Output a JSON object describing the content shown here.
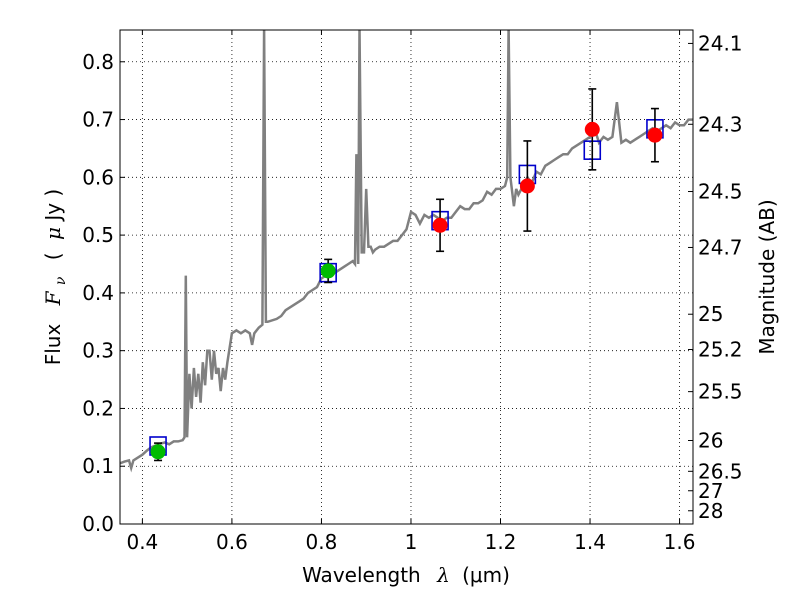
{
  "chart_data": {
    "type": "line",
    "x_axis": {
      "range": [
        0.35,
        1.63
      ],
      "ticks": [
        0.4,
        0.6,
        0.8,
        1.0,
        1.2,
        1.4,
        1.6
      ],
      "tick_labels": [
        "0.4",
        "0.6",
        "0.8",
        "1",
        "1.2",
        "1.4",
        "1.6"
      ],
      "label_main": "Wavelength",
      "label_symbol": "λ",
      "label_unit": "(μm)"
    },
    "y_axis": {
      "range": [
        0.0,
        0.855
      ],
      "ticks": [
        0.0,
        0.1,
        0.2,
        0.3,
        0.4,
        0.5,
        0.6,
        0.7,
        0.8
      ],
      "tick_labels": [
        "0.0",
        "0.1",
        "0.2",
        "0.3",
        "0.4",
        "0.5",
        "0.6",
        "0.7",
        "0.8"
      ],
      "label_main": "Flux",
      "label_symbol": "F",
      "label_subscript": "ν",
      "label_unit_open": "(",
      "label_unit_mu": "μ",
      "label_unit_rest": "Jy )"
    },
    "right_axis": {
      "label": "Magnitude (AB)",
      "ticks": [
        24.1,
        24.3,
        24.5,
        24.7,
        25,
        25.2,
        25.5,
        26,
        26.5,
        27,
        28
      ],
      "tick_labels": [
        "24.1",
        "24.3",
        "24.5",
        "24.7",
        "25",
        "25.2",
        "25.5",
        "26",
        "26.5",
        "27",
        "28"
      ]
    },
    "grid": true,
    "spectrum": {
      "color": "#808080",
      "points": [
        [
          0.35,
          0.105
        ],
        [
          0.36,
          0.108
        ],
        [
          0.37,
          0.11
        ],
        [
          0.375,
          0.097
        ],
        [
          0.38,
          0.11
        ],
        [
          0.39,
          0.115
        ],
        [
          0.4,
          0.12
        ],
        [
          0.41,
          0.127
        ],
        [
          0.42,
          0.133
        ],
        [
          0.43,
          0.136
        ],
        [
          0.44,
          0.139
        ],
        [
          0.45,
          0.141
        ],
        [
          0.46,
          0.138
        ],
        [
          0.47,
          0.143
        ],
        [
          0.48,
          0.143
        ],
        [
          0.49,
          0.145
        ],
        [
          0.494,
          0.15
        ],
        [
          0.497,
          0.43
        ],
        [
          0.5,
          0.15
        ],
        [
          0.505,
          0.26
        ],
        [
          0.51,
          0.2
        ],
        [
          0.515,
          0.27
        ],
        [
          0.52,
          0.22
        ],
        [
          0.525,
          0.26
        ],
        [
          0.53,
          0.21
        ],
        [
          0.535,
          0.28
        ],
        [
          0.54,
          0.24
        ],
        [
          0.545,
          0.3
        ],
        [
          0.55,
          0.3
        ],
        [
          0.555,
          0.25
        ],
        [
          0.56,
          0.3
        ],
        [
          0.565,
          0.26
        ],
        [
          0.57,
          0.27
        ],
        [
          0.575,
          0.23
        ],
        [
          0.58,
          0.27
        ],
        [
          0.585,
          0.25
        ],
        [
          0.59,
          0.28
        ],
        [
          0.6,
          0.33
        ],
        [
          0.61,
          0.335
        ],
        [
          0.62,
          0.33
        ],
        [
          0.63,
          0.335
        ],
        [
          0.64,
          0.33
        ],
        [
          0.645,
          0.31
        ],
        [
          0.65,
          0.33
        ],
        [
          0.66,
          0.34
        ],
        [
          0.668,
          0.345
        ],
        [
          0.672,
          0.86
        ],
        [
          0.676,
          0.35
        ],
        [
          0.68,
          0.35
        ],
        [
          0.7,
          0.355
        ],
        [
          0.71,
          0.36
        ],
        [
          0.72,
          0.37
        ],
        [
          0.73,
          0.375
        ],
        [
          0.74,
          0.38
        ],
        [
          0.75,
          0.385
        ],
        [
          0.76,
          0.39
        ],
        [
          0.77,
          0.4
        ],
        [
          0.78,
          0.405
        ],
        [
          0.79,
          0.41
        ],
        [
          0.8,
          0.425
        ],
        [
          0.81,
          0.43
        ],
        [
          0.82,
          0.43
        ],
        [
          0.83,
          0.435
        ],
        [
          0.84,
          0.44
        ],
        [
          0.85,
          0.445
        ],
        [
          0.86,
          0.45
        ],
        [
          0.87,
          0.455
        ],
        [
          0.875,
          0.45
        ],
        [
          0.878,
          0.64
        ],
        [
          0.882,
          0.45
        ],
        [
          0.885,
          0.86
        ],
        [
          0.89,
          0.47
        ],
        [
          0.895,
          0.47
        ],
        [
          0.9,
          0.58
        ],
        [
          0.905,
          0.48
        ],
        [
          0.91,
          0.48
        ],
        [
          0.915,
          0.47
        ],
        [
          0.92,
          0.475
        ],
        [
          0.93,
          0.48
        ],
        [
          0.94,
          0.48
        ],
        [
          0.95,
          0.485
        ],
        [
          0.96,
          0.49
        ],
        [
          0.97,
          0.49
        ],
        [
          0.98,
          0.5
        ],
        [
          0.99,
          0.51
        ],
        [
          1.0,
          0.54
        ],
        [
          1.01,
          0.535
        ],
        [
          1.02,
          0.52
        ],
        [
          1.03,
          0.535
        ],
        [
          1.04,
          0.53
        ],
        [
          1.05,
          0.535
        ],
        [
          1.06,
          0.53
        ],
        [
          1.07,
          0.525
        ],
        [
          1.08,
          0.53
        ],
        [
          1.09,
          0.53
        ],
        [
          1.1,
          0.54
        ],
        [
          1.11,
          0.55
        ],
        [
          1.12,
          0.545
        ],
        [
          1.13,
          0.545
        ],
        [
          1.14,
          0.555
        ],
        [
          1.15,
          0.555
        ],
        [
          1.16,
          0.56
        ],
        [
          1.17,
          0.575
        ],
        [
          1.18,
          0.57
        ],
        [
          1.19,
          0.58
        ],
        [
          1.2,
          0.58
        ],
        [
          1.21,
          0.585
        ],
        [
          1.215,
          0.6
        ],
        [
          1.218,
          0.86
        ],
        [
          1.222,
          0.6
        ],
        [
          1.23,
          0.55
        ],
        [
          1.235,
          0.58
        ],
        [
          1.24,
          0.57
        ],
        [
          1.25,
          0.585
        ],
        [
          1.26,
          0.6
        ],
        [
          1.27,
          0.59
        ],
        [
          1.28,
          0.61
        ],
        [
          1.29,
          0.605
        ],
        [
          1.3,
          0.62
        ],
        [
          1.31,
          0.625
        ],
        [
          1.32,
          0.63
        ],
        [
          1.33,
          0.635
        ],
        [
          1.34,
          0.64
        ],
        [
          1.35,
          0.64
        ],
        [
          1.36,
          0.65
        ],
        [
          1.37,
          0.655
        ],
        [
          1.38,
          0.66
        ],
        [
          1.39,
          0.665
        ],
        [
          1.4,
          0.67
        ],
        [
          1.41,
          0.685
        ],
        [
          1.42,
          0.66
        ],
        [
          1.43,
          0.67
        ],
        [
          1.44,
          0.665
        ],
        [
          1.45,
          0.67
        ],
        [
          1.46,
          0.73
        ],
        [
          1.47,
          0.66
        ],
        [
          1.48,
          0.665
        ],
        [
          1.49,
          0.66
        ],
        [
          1.5,
          0.665
        ],
        [
          1.51,
          0.67
        ],
        [
          1.52,
          0.675
        ],
        [
          1.53,
          0.68
        ],
        [
          1.54,
          0.685
        ],
        [
          1.55,
          0.68
        ],
        [
          1.56,
          0.685
        ],
        [
          1.57,
          0.69
        ],
        [
          1.58,
          0.685
        ],
        [
          1.59,
          0.695
        ],
        [
          1.6,
          0.69
        ],
        [
          1.61,
          0.69
        ],
        [
          1.62,
          0.7
        ],
        [
          1.63,
          0.7
        ]
      ]
    },
    "model_boxes": {
      "color": "#0000cc",
      "points": [
        [
          0.435,
          0.135
        ],
        [
          0.815,
          0.435
        ],
        [
          1.065,
          0.525
        ],
        [
          1.26,
          0.605
        ],
        [
          1.405,
          0.647
        ],
        [
          1.545,
          0.684
        ]
      ]
    },
    "observed_green": {
      "color": "#00bb00",
      "points": [
        {
          "x": 0.435,
          "y": 0.125,
          "err": 0.015
        },
        {
          "x": 0.815,
          "y": 0.438,
          "err": 0.02
        }
      ]
    },
    "observed_red": {
      "color": "#ff0000",
      "points": [
        {
          "x": 1.065,
          "y": 0.517,
          "err": 0.045
        },
        {
          "x": 1.26,
          "y": 0.585,
          "err": 0.078
        },
        {
          "x": 1.405,
          "y": 0.683,
          "err": 0.07
        },
        {
          "x": 1.545,
          "y": 0.673,
          "err": 0.046
        }
      ]
    }
  }
}
